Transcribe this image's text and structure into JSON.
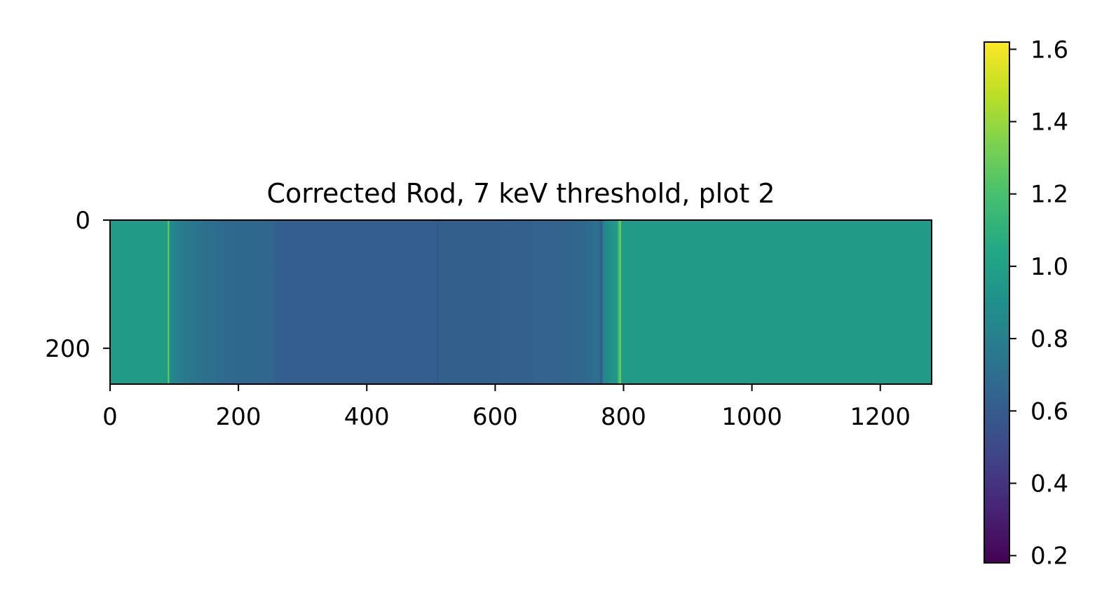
{
  "chart_data": {
    "type": "heatmap",
    "title": "Corrected Rod, 7 keV threshold, plot 2",
    "xlabel": "",
    "ylabel": "",
    "xlim": [
      0,
      1280
    ],
    "ylim": [
      256,
      0
    ],
    "x_ticks": [
      "0",
      "200",
      "400",
      "600",
      "800",
      "1000",
      "1200"
    ],
    "y_ticks": [
      "0",
      "200"
    ],
    "colormap": "viridis",
    "colorbar": {
      "range": [
        0.18,
        1.62
      ],
      "ticks": [
        "0.2",
        "0.4",
        "0.6",
        "0.8",
        "1.0",
        "1.2",
        "1.4",
        "1.6"
      ],
      "placement": "right"
    },
    "column_profile": {
      "x": [
        0,
        90,
        91,
        92,
        95,
        110,
        140,
        170,
        200,
        240,
        255,
        258,
        300,
        400,
        508,
        512,
        600,
        700,
        740,
        760,
        765,
        770,
        790,
        794,
        796,
        800,
        1280
      ],
      "values": [
        0.97,
        0.97,
        1.25,
        0.88,
        0.86,
        0.78,
        0.72,
        0.69,
        0.67,
        0.66,
        0.65,
        0.61,
        0.61,
        0.61,
        0.61,
        0.62,
        0.62,
        0.64,
        0.67,
        0.72,
        0.62,
        0.85,
        0.96,
        1.25,
        0.97,
        0.97,
        0.97
      ]
    },
    "bright_lines_x": [
      91,
      795
    ],
    "dark_lines_x": [
      510,
      765
    ]
  }
}
